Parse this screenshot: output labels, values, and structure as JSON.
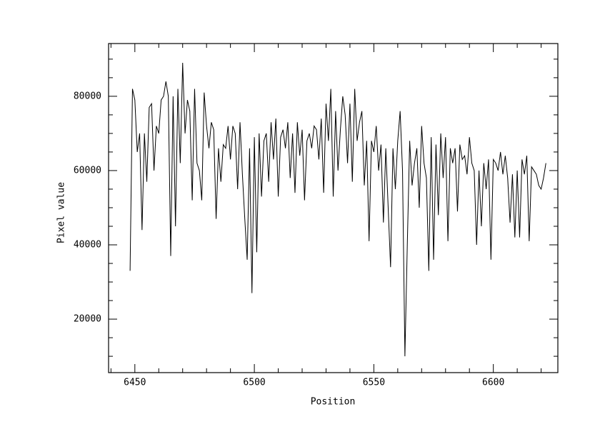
{
  "chart_data": {
    "type": "line",
    "xlabel": "Position",
    "ylabel": "Pixel value",
    "xlim": [
      6439,
      6627
    ],
    "ylim": [
      5600,
      94200
    ],
    "xticks": [
      6450,
      6500,
      6550,
      6600
    ],
    "yticks": [
      20000,
      40000,
      60000,
      80000
    ],
    "xminorticks": [
      6440,
      6460,
      6470,
      6480,
      6490,
      6510,
      6520,
      6530,
      6540,
      6560,
      6570,
      6580,
      6590,
      6610,
      6620
    ],
    "yminorticks": [
      10000,
      15000,
      25000,
      30000,
      35000,
      45000,
      50000,
      55000,
      65000,
      70000,
      75000,
      85000,
      90000
    ],
    "x": [
      6448,
      6449,
      6450,
      6451,
      6452,
      6453,
      6454,
      6455,
      6456,
      6457,
      6458,
      6459,
      6460,
      6461,
      6462,
      6463,
      6464,
      6465,
      6466,
      6467,
      6468,
      6469,
      6470,
      6471,
      6472,
      6473,
      6474,
      6475,
      6476,
      6477,
      6478,
      6479,
      6480,
      6481,
      6482,
      6483,
      6484,
      6485,
      6486,
      6487,
      6488,
      6489,
      6490,
      6491,
      6492,
      6493,
      6494,
      6495,
      6496,
      6497,
      6498,
      6499,
      6500,
      6501,
      6502,
      6503,
      6504,
      6505,
      6506,
      6507,
      6508,
      6509,
      6510,
      6511,
      6512,
      6513,
      6514,
      6515,
      6516,
      6517,
      6518,
      6519,
      6520,
      6521,
      6522,
      6523,
      6524,
      6525,
      6526,
      6527,
      6528,
      6529,
      6530,
      6531,
      6532,
      6533,
      6534,
      6535,
      6536,
      6537,
      6538,
      6539,
      6540,
      6541,
      6542,
      6543,
      6544,
      6545,
      6546,
      6547,
      6548,
      6549,
      6550,
      6551,
      6552,
      6553,
      6554,
      6555,
      6556,
      6557,
      6558,
      6559,
      6560,
      6561,
      6562,
      6563,
      6564,
      6565,
      6566,
      6567,
      6568,
      6569,
      6570,
      6571,
      6572,
      6573,
      6574,
      6575,
      6576,
      6577,
      6578,
      6579,
      6580,
      6581,
      6582,
      6583,
      6584,
      6585,
      6586,
      6587,
      6588,
      6589,
      6590,
      6591,
      6592,
      6593,
      6594,
      6595,
      6596,
      6597,
      6598,
      6599,
      6600,
      6601,
      6602,
      6603,
      6604,
      6605,
      6606,
      6607,
      6608,
      6609,
      6610,
      6611,
      6612,
      6613,
      6614,
      6615,
      6616,
      6617,
      6618,
      6619,
      6620,
      6621,
      6622
    ],
    "series": [
      {
        "color": "#000000",
        "values": [
          33000,
          82000,
          79000,
          65000,
          70000,
          44000,
          70000,
          57000,
          77000,
          78000,
          60000,
          72000,
          70000,
          79000,
          80000,
          84000,
          80000,
          37000,
          80000,
          45000,
          82000,
          62000,
          89000,
          70000,
          79000,
          76000,
          52000,
          82000,
          62000,
          60000,
          52000,
          81000,
          72000,
          66000,
          73000,
          71000,
          47000,
          66000,
          57000,
          67000,
          66000,
          72000,
          63000,
          72000,
          70000,
          55000,
          73000,
          59000,
          47000,
          36000,
          66000,
          27000,
          69000,
          38000,
          70000,
          53000,
          68000,
          70000,
          57000,
          73000,
          63000,
          74000,
          53000,
          69000,
          71000,
          66000,
          73000,
          58000,
          70000,
          54000,
          73000,
          64000,
          71000,
          52000,
          68000,
          70000,
          66000,
          72000,
          71000,
          63000,
          74000,
          54000,
          78000,
          68000,
          82000,
          53000,
          76000,
          60000,
          71000,
          80000,
          75000,
          62000,
          78000,
          57000,
          82000,
          68000,
          73000,
          76000,
          56000,
          68000,
          41000,
          68000,
          65000,
          72000,
          60000,
          67000,
          46000,
          66000,
          50000,
          34000,
          66000,
          55000,
          68000,
          76000,
          60000,
          10000,
          40000,
          68000,
          56000,
          62000,
          66000,
          50000,
          72000,
          62000,
          58000,
          33000,
          69000,
          36000,
          67000,
          48000,
          70000,
          58000,
          69000,
          41000,
          66000,
          62000,
          66000,
          49000,
          67000,
          63000,
          64000,
          59000,
          69000,
          62000,
          60000,
          40000,
          60000,
          45000,
          62000,
          55000,
          63000,
          36000,
          63000,
          62000,
          60000,
          65000,
          59000,
          64000,
          58000,
          46000,
          59000,
          42000,
          60000,
          42000,
          63000,
          59000,
          64000,
          41000,
          61000,
          60000,
          59000,
          56000,
          55000,
          58000,
          62000
        ]
      }
    ]
  }
}
